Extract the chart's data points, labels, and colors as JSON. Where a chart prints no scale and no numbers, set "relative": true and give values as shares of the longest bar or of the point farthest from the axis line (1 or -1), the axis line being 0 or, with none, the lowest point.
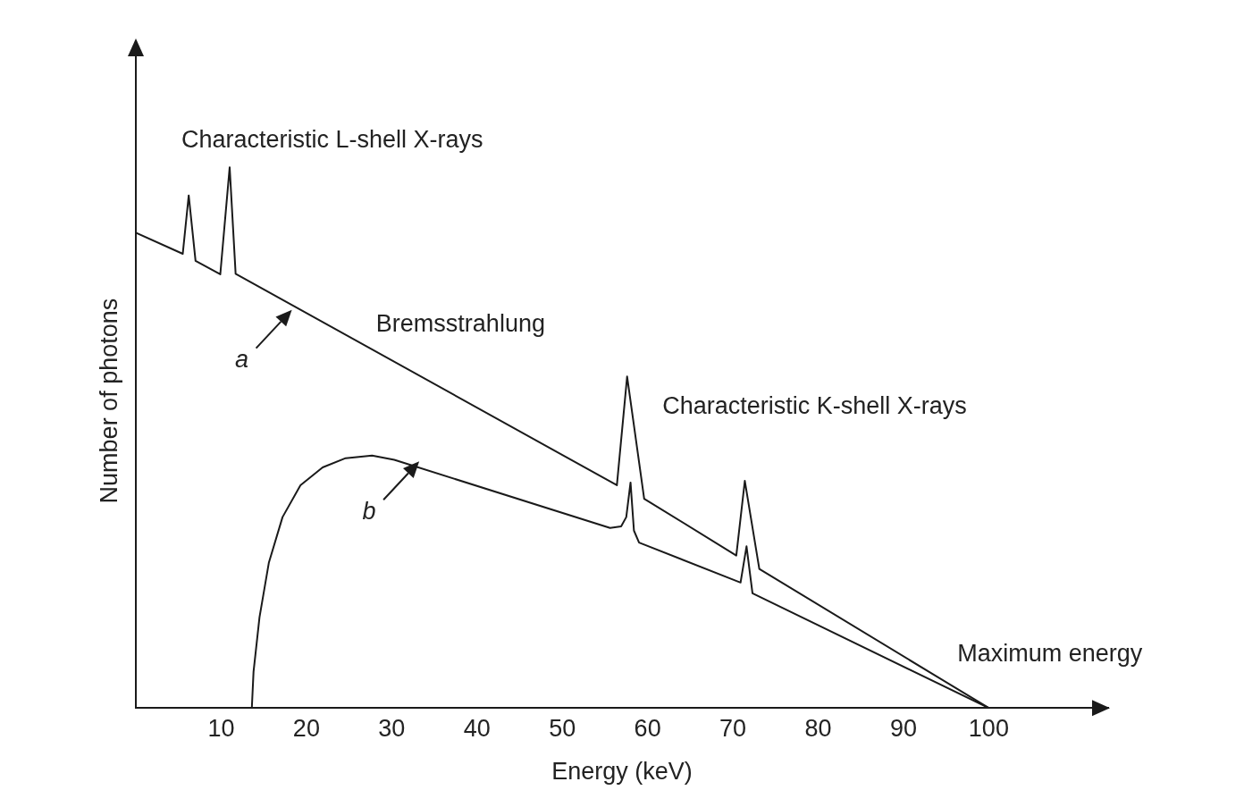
{
  "chart_data": {
    "type": "line",
    "relative": true,
    "xlabel": "Energy (keV)",
    "ylabel": "Number of photons",
    "xlim": [
      0,
      114
    ],
    "xticks": [
      10,
      20,
      30,
      40,
      50,
      60,
      70,
      80,
      90,
      100
    ],
    "grid": false,
    "legend": false,
    "marker": "none",
    "line_style": "solid",
    "series": [
      {
        "color": "#1a1a1a",
        "x": [
          0,
          5.5,
          6.2,
          7.0,
          9.9,
          11.0,
          11.7,
          56.4,
          57.6,
          59.6,
          70.4,
          71.4,
          73.1,
          100
        ],
        "values": [
          0.879,
          0.84,
          0.948,
          0.827,
          0.802,
          1.0,
          0.803,
          0.412,
          0.613,
          0.387,
          0.282,
          0.42,
          0.257,
          0
        ]
      },
      {
        "color": "#1a1a1a",
        "x": [
          13.6,
          13.8,
          14.5,
          15.6,
          17.2,
          19.3,
          21.9,
          24.6,
          27.7,
          30.3,
          55.6,
          56.9,
          57.5,
          58.0,
          58.4,
          59.0,
          70.9,
          71.6,
          72.3,
          100
        ],
        "values": [
          0,
          0.067,
          0.168,
          0.269,
          0.353,
          0.412,
          0.445,
          0.462,
          0.467,
          0.459,
          0.333,
          0.336,
          0.353,
          0.417,
          0.328,
          0.306,
          0.232,
          0.299,
          0.212,
          0
        ]
      }
    ],
    "annotations": [
      "Characteristic L-shell X-rays",
      "Bremsstrahlung",
      "Characteristic K-shell X-rays",
      "Maximum energy",
      "a",
      "b"
    ]
  }
}
